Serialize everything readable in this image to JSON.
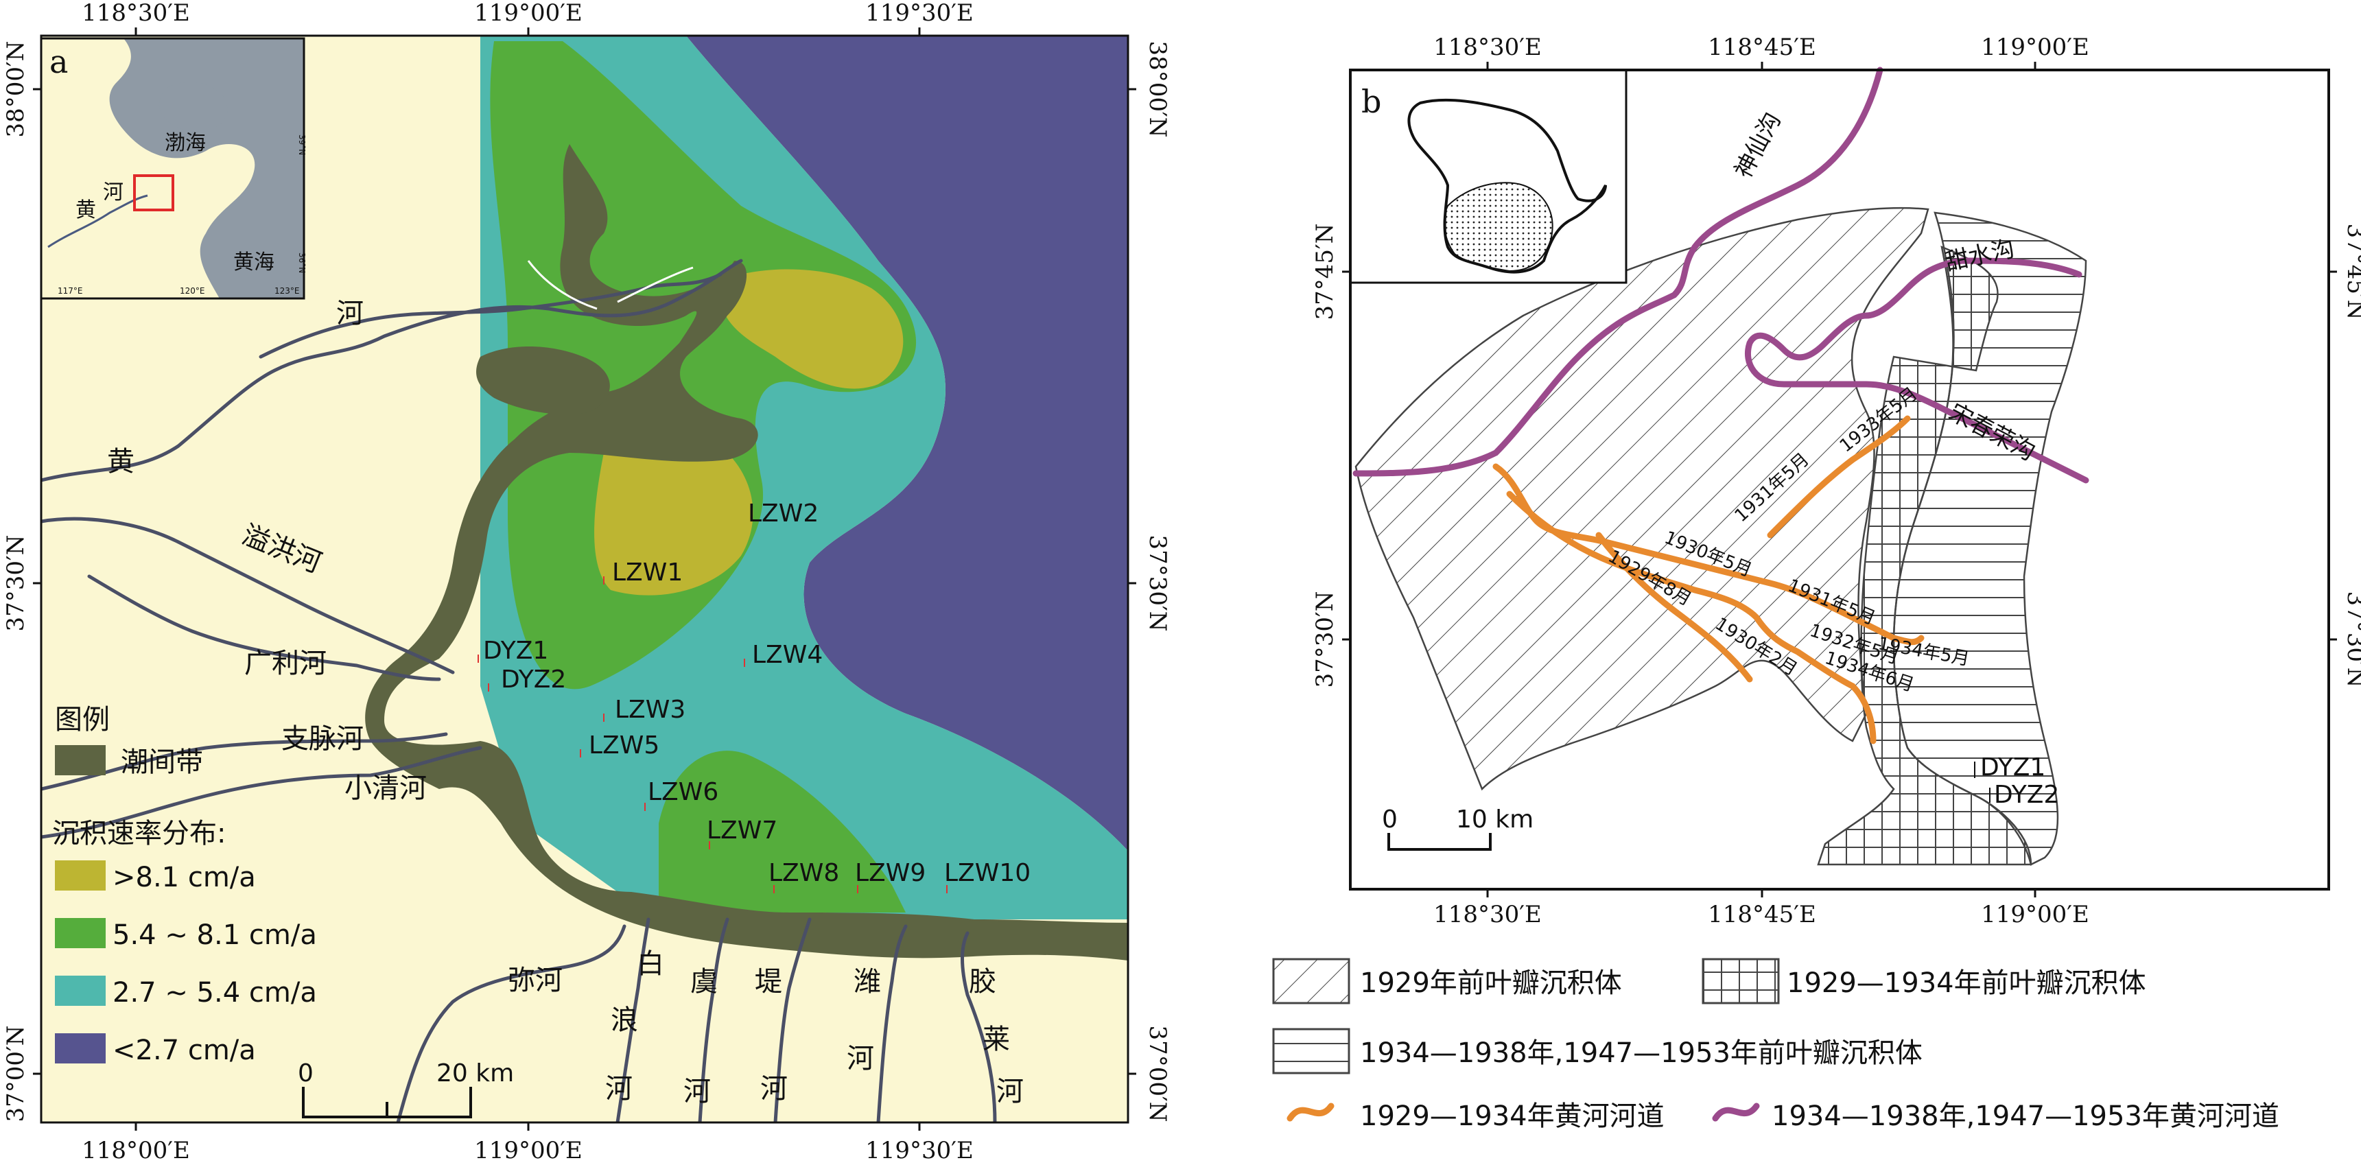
{
  "panel_a": {
    "label": "a",
    "ticks": {
      "top": [
        "118°30′E",
        "119°00′E",
        "119°30′E"
      ],
      "bottom": [
        "118°00′E",
        "119°00′E",
        "119°30′E"
      ],
      "left": [
        "38°00′N",
        "37°30′N",
        "37°00′N"
      ],
      "right": [
        "38°00′N",
        "37°30′N",
        "37°00′N"
      ]
    },
    "inset": {
      "bohai": "渤海",
      "yellow_sea": "黄海",
      "yellow_river": "黄",
      "river_char": "河",
      "lon_ticks": [
        "117°E",
        "120°E",
        "123°E"
      ],
      "lat_ticks": [
        "39°N",
        "36°N"
      ]
    },
    "rivers": {
      "huang": "黄",
      "he": "河",
      "yixie": "溢洪河",
      "guangli": "广利河",
      "zhimai": "支脉河",
      "xiaoqing": "小清河",
      "mi": "弥河",
      "bailang": [
        "白",
        "浪",
        "河"
      ],
      "yu": [
        "虞"
      ],
      "ti": [
        "堤",
        "河"
      ],
      "wei": [
        "潍",
        "河"
      ],
      "jiaolai": [
        "胶",
        "莱",
        "河"
      ]
    },
    "stations": [
      "LZW1",
      "LZW2",
      "LZW3",
      "LZW4",
      "LZW5",
      "LZW6",
      "LZW7",
      "LZW8",
      "LZW9",
      "LZW10",
      "DYZ1",
      "DYZ2"
    ],
    "legend": {
      "title": "图例",
      "intertidal": "潮间带",
      "rate_title": "沉积速率分布:",
      "classes": [
        {
          "label": ">8.1 cm/a",
          "color": "#bdb532"
        },
        {
          "label": "5.4 ~ 8.1 cm/a",
          "color": "#55ad3c"
        },
        {
          "label": "2.7 ~ 5.4 cm/a",
          "color": "#4fb8ad"
        },
        {
          "label": "<2.7 cm/a",
          "color": "#56548f"
        }
      ],
      "intertidal_color": "#5d6442"
    },
    "scale": {
      "zero": "0",
      "twenty": "20 km"
    }
  },
  "panel_b": {
    "label": "b",
    "ticks": {
      "top": [
        "118°30′E",
        "118°45′E",
        "119°00′E"
      ],
      "bottom": [
        "118°30′E",
        "118°45′E",
        "119°00′E"
      ],
      "left": [
        "37°45′N",
        "37°30′N"
      ],
      "right": [
        "37°45′N",
        "37°30′N"
      ]
    },
    "rivers": {
      "shenxian": "神仙沟",
      "tianshui": "甜水沟",
      "songchunrong": "宋春荣沟"
    },
    "channel_dates": [
      "1933年5月",
      "1931年5月",
      "1930年5月",
      "1929年8月",
      "1931年5月",
      "1932年5月",
      "1930年2月",
      "1934年5月",
      "1934年6月"
    ],
    "stations": [
      "DYZ1",
      "DYZ2"
    ],
    "scale": {
      "zero": "0",
      "ten": "10 km"
    }
  },
  "legend_b": {
    "lobe_1929": "1929年前叶瓣沉积体",
    "lobe_1929_1934": "1929—1934年前叶瓣沉积体",
    "lobe_1934_1953": "1934—1938年,1947—1953年前叶瓣沉积体",
    "river_1929_1934": "1929—1934年黄河河道",
    "river_1934_1953": "1934—1938年,1947—1953年黄河河道",
    "orange": "#e88a2e",
    "purple": "#9b4a8c"
  }
}
